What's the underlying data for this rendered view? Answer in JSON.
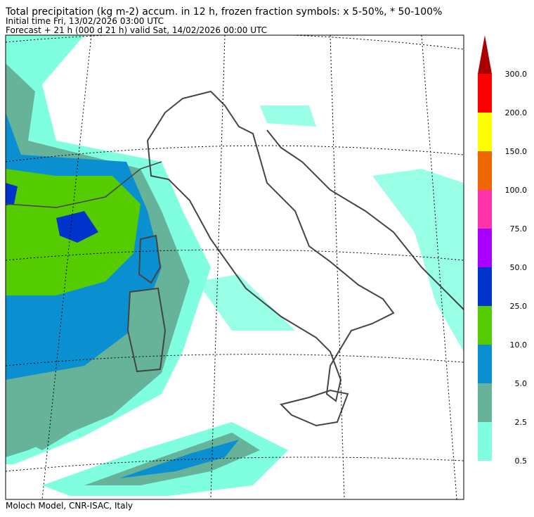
{
  "header": {
    "title": "Total precipitation (kg m-2) accum. in 12 h, frozen fraction symbols: x 5-50%, * 50-100%",
    "initial_time": "Initial time  Fri, 13/02/2026  03:00 UTC",
    "forecast": "Forecast  +  21 h  (000 d 21 h)  valid Sat, 14/02/2026 00:00 UTC"
  },
  "legend": {
    "labels": [
      "0.5",
      "2.5",
      "5.0",
      "10.0",
      "25.0",
      "50.0",
      "75.0",
      "100.0",
      "150.0",
      "200.0",
      "300.0"
    ],
    "colors": [
      "#80ffe0",
      "#66b399",
      "#0a90d0",
      "#55cc00",
      "#0033cc",
      "#aa00ff",
      "#ff33aa",
      "#ee6600",
      "#ffff00",
      "#ff0000",
      "#aa0000"
    ]
  },
  "footer": "Moloch Model, CNR-ISAC, Italy"
}
